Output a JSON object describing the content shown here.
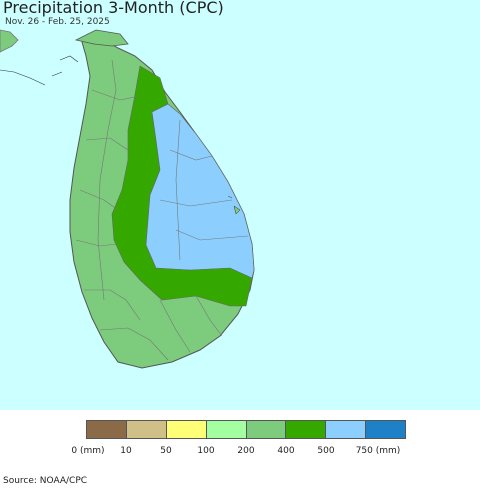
{
  "title": "Precipitation 3-Month (CPC)",
  "subtitle": "Nov. 26 - Feb. 25, 2025",
  "source": "Source: NOAA/CPC",
  "colors": {
    "ocean": "#ccffff",
    "land_200_400": "#7dcb7d",
    "land_400_500": "#35a800",
    "land_500_750": "#8ccfff",
    "india_land": "#7dcb7d",
    "borders": "#777777"
  },
  "legend": {
    "swatches": [
      "#8b6b47",
      "#d1bf88",
      "#ffff77",
      "#a3ff9f",
      "#7dcb7d",
      "#35a800",
      "#8ccfff",
      "#1e80c6"
    ],
    "labels": [
      "0 (mm)",
      "10",
      "50",
      "100",
      "200",
      "400",
      "500",
      "750 (mm)"
    ]
  }
}
